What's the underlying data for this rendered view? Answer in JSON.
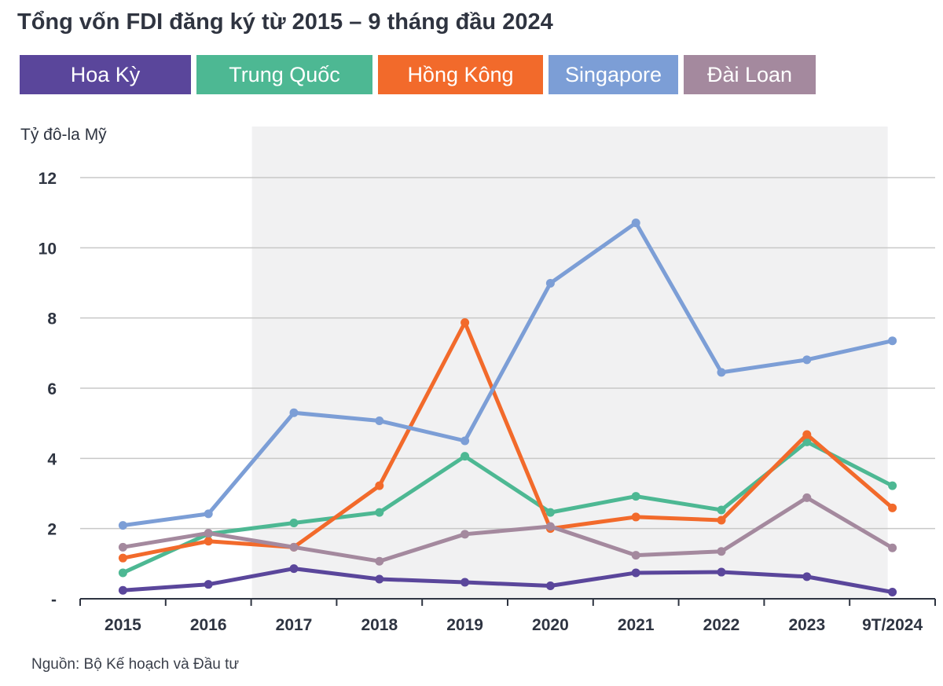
{
  "title": "Tổng vốn FDI đăng ký từ 2015 – 9 tháng đầu 2024",
  "source": "Nguồn: Bộ Kế hoạch và Đầu tư",
  "legend": [
    {
      "label": "Hoa Kỳ",
      "color": "#5a469b"
    },
    {
      "label": "Trung Quốc",
      "color": "#4db893"
    },
    {
      "label": "Hồng Kông",
      "color": "#f26a2b"
    },
    {
      "label": "Singapore",
      "color": "#7c9ed6"
    },
    {
      "label": "Đài Loan",
      "color": "#a4899e"
    }
  ],
  "chart_data": {
    "type": "line",
    "title": "Tổng vốn FDI đăng ký từ 2015 – 9 tháng đầu 2024",
    "ylabel": "Tỷ đô-la Mỹ",
    "xlabel": "",
    "categories": [
      "2015",
      "2016",
      "2017",
      "2018",
      "2019",
      "2020",
      "2021",
      "2022",
      "2023",
      "9T/2024"
    ],
    "ylim": [
      0,
      12
    ],
    "yticks": [
      0,
      2,
      4,
      6,
      8,
      10,
      12
    ],
    "ytick_labels": [
      "-",
      "2",
      "4",
      "6",
      "8",
      "10",
      "12"
    ],
    "grid": true,
    "shaded_region": {
      "from": "2017",
      "to": "9T/2024"
    },
    "series": [
      {
        "name": "Hoa Kỳ",
        "color": "#5a469b",
        "values": [
          0.24,
          0.41,
          0.86,
          0.56,
          0.47,
          0.37,
          0.74,
          0.76,
          0.63,
          0.19
        ]
      },
      {
        "name": "Trung Quốc",
        "color": "#4db893",
        "values": [
          0.74,
          1.85,
          2.16,
          2.46,
          4.06,
          2.46,
          2.92,
          2.53,
          4.47,
          3.22
        ]
      },
      {
        "name": "Hồng Kông",
        "color": "#f26a2b",
        "values": [
          1.16,
          1.64,
          1.47,
          3.22,
          7.87,
          2.0,
          2.33,
          2.24,
          4.68,
          2.59
        ]
      },
      {
        "name": "Singapore",
        "color": "#7c9ed6",
        "values": [
          2.09,
          2.42,
          5.3,
          5.07,
          4.5,
          8.99,
          10.71,
          6.45,
          6.81,
          7.35
        ]
      },
      {
        "name": "Đài Loan",
        "color": "#a4899e",
        "values": [
          1.47,
          1.87,
          1.47,
          1.07,
          1.84,
          2.06,
          1.24,
          1.35,
          2.88,
          1.45
        ]
      }
    ]
  }
}
